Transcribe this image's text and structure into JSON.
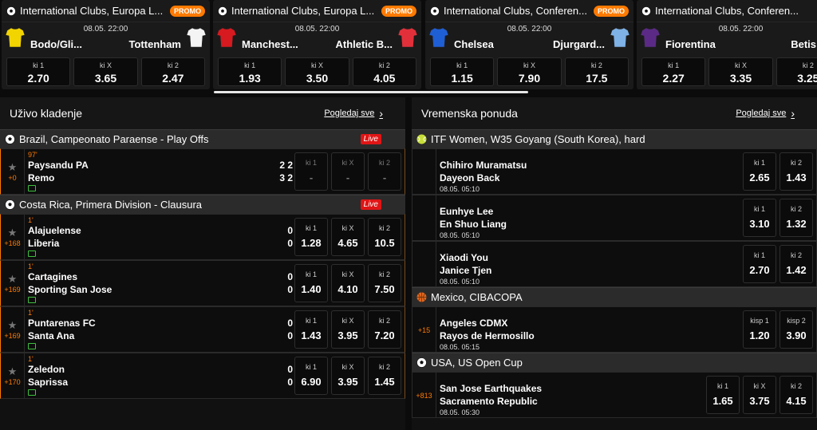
{
  "promo_cards": [
    {
      "league": "International Clubs, Europa L...",
      "badge": "PROMO",
      "date": "08.05. 22:00",
      "home": "Bodo/Gli...",
      "away": "Tottenham",
      "home_shirt_color": "#f2d400",
      "away_shirt_color": "#f4f4f4",
      "odds": [
        {
          "label": "ki 1",
          "value": "2.70"
        },
        {
          "label": "ki X",
          "value": "3.65"
        },
        {
          "label": "ki 2",
          "value": "2.47"
        }
      ]
    },
    {
      "league": "International Clubs, Europa L...",
      "badge": "PROMO",
      "date": "08.05. 22:00",
      "home": "Manchest...",
      "away": "Athletic B...",
      "home_shirt_color": "#d71920",
      "away_shirt_color": "#e2303a",
      "odds": [
        {
          "label": "ki 1",
          "value": "1.93"
        },
        {
          "label": "ki X",
          "value": "3.50"
        },
        {
          "label": "ki 2",
          "value": "4.05"
        }
      ]
    },
    {
      "league": "International Clubs, Conferen...",
      "badge": "PROMO",
      "date": "08.05. 22:00",
      "home": "Chelsea",
      "away": "Djurgard...",
      "home_shirt_color": "#1f5fd6",
      "away_shirt_color": "#7fb2e6",
      "odds": [
        {
          "label": "ki 1",
          "value": "1.15"
        },
        {
          "label": "ki X",
          "value": "7.90"
        },
        {
          "label": "ki 2",
          "value": "17.5"
        }
      ]
    },
    {
      "league": "International Clubs, Conferen...",
      "badge": "",
      "date": "08.05. 22:00",
      "home": "Fiorentina",
      "away": "Betis",
      "home_shirt_color": "#5b2a86",
      "away_shirt_color": "#1a8a3a",
      "odds": [
        {
          "label": "ki 1",
          "value": "2.27"
        },
        {
          "label": "ki X",
          "value": "3.35"
        },
        {
          "label": "ki 2",
          "value": "3.25"
        }
      ]
    }
  ],
  "live": {
    "title": "Uživo kladenje",
    "see_all": "Pogledaj sve",
    "leagues": [
      {
        "name": "Brazil, Campeonato Paraense - Play Offs",
        "badge": "Live",
        "events": [
          {
            "minute": "97'",
            "home": "Paysandu PA",
            "away": "Remo",
            "home_score": "2 2",
            "away_score": "3 2",
            "more": "+0",
            "disabled": true,
            "odds": [
              {
                "label": "ki 1",
                "value": "-"
              },
              {
                "label": "ki X",
                "value": "-"
              },
              {
                "label": "ki 2",
                "value": "-"
              }
            ]
          }
        ]
      },
      {
        "name": "Costa Rica, Primera Division - Clausura",
        "badge": "Live",
        "events": [
          {
            "minute": "1'",
            "home": "Alajuelense",
            "away": "Liberia",
            "home_score": "0",
            "away_score": "0",
            "more": "+168",
            "odds": [
              {
                "label": "ki 1",
                "value": "1.28"
              },
              {
                "label": "ki X",
                "value": "4.65"
              },
              {
                "label": "ki 2",
                "value": "10.5"
              }
            ]
          },
          {
            "minute": "1'",
            "home": "Cartagines",
            "away": "Sporting San Jose",
            "home_score": "0",
            "away_score": "0",
            "more": "+169",
            "odds": [
              {
                "label": "ki 1",
                "value": "1.40"
              },
              {
                "label": "ki X",
                "value": "4.10"
              },
              {
                "label": "ki 2",
                "value": "7.50"
              }
            ]
          },
          {
            "minute": "1'",
            "home": "Puntarenas FC",
            "away": "Santa Ana",
            "home_score": "0",
            "away_score": "0",
            "more": "+169",
            "odds": [
              {
                "label": "ki 1",
                "value": "1.43"
              },
              {
                "label": "ki X",
                "value": "3.95"
              },
              {
                "label": "ki 2",
                "value": "7.20"
              }
            ]
          },
          {
            "minute": "1'",
            "home": "Zeledon",
            "away": "Saprissa",
            "home_score": "0",
            "away_score": "0",
            "more": "+170",
            "odds": [
              {
                "label": "ki 1",
                "value": "6.90"
              },
              {
                "label": "ki X",
                "value": "3.95"
              },
              {
                "label": "ki 2",
                "value": "1.45"
              }
            ]
          }
        ]
      }
    ]
  },
  "prematch": {
    "title": "Vremenska ponuda",
    "see_all": "Pogledaj sve",
    "leagues": [
      {
        "name": "ITF Women, W35 Goyang (South Korea), hard",
        "icon": "tennis-ball-icon",
        "events": [
          {
            "home": "Chihiro Muramatsu",
            "away": "Dayeon Back",
            "date": "08.05. 05:10",
            "more": "",
            "odds": [
              {
                "label": "ki 1",
                "value": "2.65"
              },
              {
                "label": "ki 2",
                "value": "1.43"
              }
            ]
          },
          {
            "home": "Eunhye Lee",
            "away": "En Shuo Liang",
            "date": "08.05. 05:10",
            "more": "",
            "odds": [
              {
                "label": "ki 1",
                "value": "3.10"
              },
              {
                "label": "ki 2",
                "value": "1.32"
              }
            ]
          },
          {
            "home": "Xiaodi You",
            "away": "Janice Tjen",
            "date": "08.05. 05:10",
            "more": "",
            "odds": [
              {
                "label": "ki 1",
                "value": "2.70"
              },
              {
                "label": "ki 2",
                "value": "1.42"
              }
            ]
          }
        ]
      },
      {
        "name": "Mexico, CIBACOPA",
        "icon": "basketball-icon",
        "events": [
          {
            "home": "Angeles CDMX",
            "away": "Rayos de Hermosillo",
            "date": "08.05. 05:15",
            "more": "+15",
            "odds": [
              {
                "label": "kisp 1",
                "value": "1.20"
              },
              {
                "label": "kisp 2",
                "value": "3.90"
              }
            ]
          }
        ]
      },
      {
        "name": "USA, US Open Cup",
        "icon": "soccer-ball-icon",
        "events": [
          {
            "home": "San Jose Earthquakes",
            "away": "Sacramento Republic",
            "date": "08.05. 05:30",
            "more": "+813",
            "odds": [
              {
                "label": "ki 1",
                "value": "1.65"
              },
              {
                "label": "ki X",
                "value": "3.75"
              },
              {
                "label": "ki 2",
                "value": "4.15"
              }
            ]
          }
        ]
      }
    ]
  }
}
